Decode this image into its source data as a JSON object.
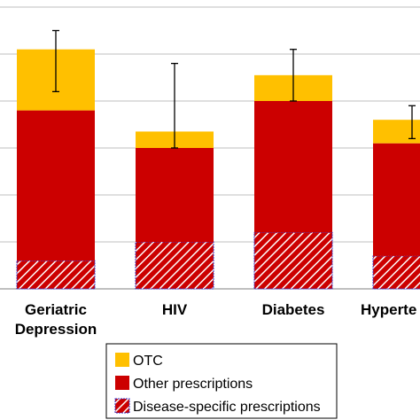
{
  "chart_data": {
    "type": "bar",
    "stacked": true,
    "categories": [
      "Geriatric Depression",
      "HIV",
      "Diabetes",
      "Hypertension"
    ],
    "category_labels": [
      [
        "Geriatric",
        "Depression"
      ],
      [
        "HIV"
      ],
      [
        "Diabetes"
      ],
      [
        "Hyperte"
      ]
    ],
    "series": [
      {
        "name": "Disease-specific prescriptions",
        "values": [
          0.6,
          1.0,
          1.2,
          0.7
        ],
        "color": "#cc0000",
        "pattern": "hatch"
      },
      {
        "name": "Other prescriptions",
        "values": [
          3.2,
          2.0,
          2.8,
          2.4
        ],
        "color": "#cc0000"
      },
      {
        "name": "OTC",
        "values": [
          1.3,
          0.35,
          0.55,
          0.5
        ],
        "color": "#ffc000"
      }
    ],
    "error_bars": [
      {
        "center": 4.7,
        "low": 4.2,
        "high": 5.5
      },
      {
        "center": 3.4,
        "low": 3.0,
        "high": 4.8
      },
      {
        "center": 4.1,
        "low": 4.0,
        "high": 5.1
      },
      {
        "center": 3.5,
        "low": 3.2,
        "high": 3.9
      }
    ],
    "ylim": [
      0,
      6
    ],
    "y_gridlines": [
      0,
      1,
      2,
      3,
      4,
      5,
      6
    ],
    "grid": true,
    "legend": {
      "placement": "bottom",
      "entries": [
        "OTC",
        "Other prescriptions",
        "Disease-specific prescriptions"
      ]
    },
    "title": "",
    "xlabel": "",
    "ylabel": ""
  },
  "colors": {
    "otc": "#ffc000",
    "other": "#cc0000",
    "hatch_stripe": "#ffffff",
    "hatch_border": "#3333cc",
    "grid": "#bfbfbf",
    "axis": "#7f7f7f"
  }
}
